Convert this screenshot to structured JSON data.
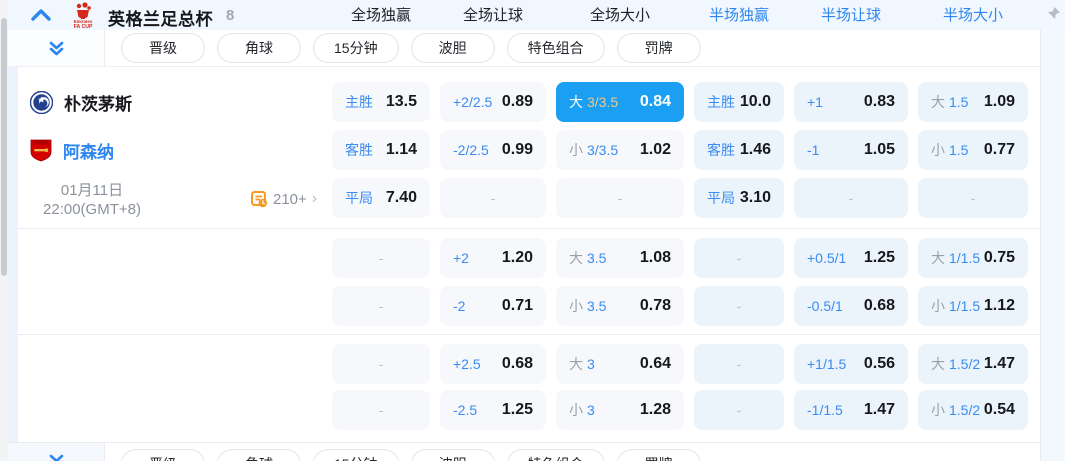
{
  "header": {
    "league": "英格兰足总杯",
    "count": "8",
    "columns": [
      {
        "label": "全场独赢",
        "tone": "dark"
      },
      {
        "label": "全场让球",
        "tone": "dark"
      },
      {
        "label": "全场大小",
        "tone": "dark"
      },
      {
        "label": "半场独赢",
        "tone": "blue"
      },
      {
        "label": "半场让球",
        "tone": "blue"
      },
      {
        "label": "半场大小",
        "tone": "blue"
      }
    ]
  },
  "filters": [
    "晋级",
    "角球",
    "15分钟",
    "波胆",
    "特色组合",
    "罚牌"
  ],
  "match": {
    "home_team": "朴茨茅斯",
    "away_team": "阿森纳",
    "date_line1": "01月11日",
    "date_line2": "22:00(GMT+8)",
    "more_markets": "210+",
    "more_arrow": "›"
  },
  "odds_rows": [
    [
      {
        "t": "win",
        "label": "主胜",
        "value": "13.5"
      },
      {
        "t": "hcp",
        "label": "+2/2.5",
        "value": "0.89"
      },
      {
        "t": "ou",
        "prefix": "大",
        "line": "3/3.5",
        "value": "0.84",
        "selected": true
      },
      {
        "t": "win",
        "label": "主胜",
        "value": "10.0"
      },
      {
        "t": "hcp",
        "label": "+1",
        "value": "0.83"
      },
      {
        "t": "ou",
        "prefix": "大",
        "line": "1.5",
        "value": "1.09"
      }
    ],
    [
      {
        "t": "win",
        "label": "客胜",
        "value": "1.14"
      },
      {
        "t": "hcp",
        "label": "-2/2.5",
        "value": "0.99"
      },
      {
        "t": "ou",
        "prefix": "小",
        "line": "3/3.5",
        "value": "1.02"
      },
      {
        "t": "win",
        "label": "客胜",
        "value": "1.46"
      },
      {
        "t": "hcp",
        "label": "-1",
        "value": "1.05"
      },
      {
        "t": "ou",
        "prefix": "小",
        "line": "1.5",
        "value": "0.77"
      }
    ],
    [
      {
        "t": "win",
        "label": "平局",
        "value": "7.40"
      },
      {
        "t": "dash"
      },
      {
        "t": "dash"
      },
      {
        "t": "win",
        "label": "平局",
        "value": "3.10"
      },
      {
        "t": "dash"
      },
      {
        "t": "dash"
      }
    ],
    [
      {
        "t": "dash"
      },
      {
        "t": "hcp",
        "label": "+2",
        "value": "1.20"
      },
      {
        "t": "ou",
        "prefix": "大",
        "line": "3.5",
        "value": "1.08"
      },
      {
        "t": "dash"
      },
      {
        "t": "hcp",
        "label": "+0.5/1",
        "value": "1.25"
      },
      {
        "t": "ou",
        "prefix": "大",
        "line": "1/1.5",
        "value": "0.75"
      }
    ],
    [
      {
        "t": "dash"
      },
      {
        "t": "hcp",
        "label": "-2",
        "value": "0.71"
      },
      {
        "t": "ou",
        "prefix": "小",
        "line": "3.5",
        "value": "0.78"
      },
      {
        "t": "dash"
      },
      {
        "t": "hcp",
        "label": "-0.5/1",
        "value": "0.68"
      },
      {
        "t": "ou",
        "prefix": "小",
        "line": "1/1.5",
        "value": "1.12"
      }
    ],
    [
      {
        "t": "dash"
      },
      {
        "t": "hcp",
        "label": "+2.5",
        "value": "0.68"
      },
      {
        "t": "ou",
        "prefix": "大",
        "line": "3",
        "value": "0.64"
      },
      {
        "t": "dash"
      },
      {
        "t": "hcp",
        "label": "+1/1.5",
        "value": "0.56"
      },
      {
        "t": "ou",
        "prefix": "大",
        "line": "1.5/2",
        "value": "1.47"
      }
    ],
    [
      {
        "t": "dash"
      },
      {
        "t": "hcp",
        "label": "-2.5",
        "value": "1.25"
      },
      {
        "t": "ou",
        "prefix": "小",
        "line": "3",
        "value": "1.28"
      },
      {
        "t": "dash"
      },
      {
        "t": "hcp",
        "label": "-1/1.5",
        "value": "1.47"
      },
      {
        "t": "ou",
        "prefix": "小",
        "line": "1.5/2",
        "value": "0.54"
      }
    ]
  ],
  "colors": {
    "accent_blue": "#2e87f0",
    "selected_cell_blue": "#1b9ff2",
    "selected_line_gold": "#ecc98e",
    "full_cell_bg": "#f6f8fb",
    "half_cell_bg": "#ebf3fb",
    "header_bg": "#f1f7fe",
    "facup_red": "#d5281b",
    "more_icon_orange": "#f79b1f"
  }
}
